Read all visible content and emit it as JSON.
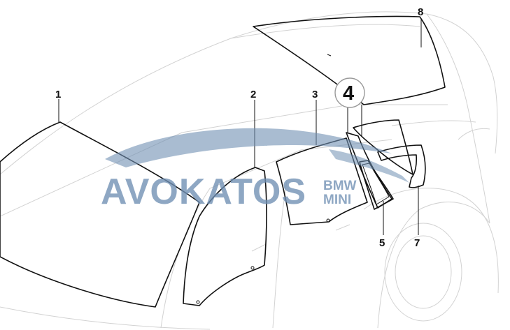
{
  "diagram": {
    "callouts": [
      {
        "id": "1",
        "label": "1"
      },
      {
        "id": "2",
        "label": "2"
      },
      {
        "id": "3",
        "label": "3"
      },
      {
        "id": "4",
        "label": "4",
        "circled": true
      },
      {
        "id": "5",
        "label": "5"
      },
      {
        "id": "6",
        "label": "7"
      },
      {
        "id": "7",
        "label": "8"
      }
    ],
    "watermark": {
      "brand": "AVOKATOS",
      "line1": "BMW",
      "line2": "MINI"
    },
    "colors": {
      "line": "#111111",
      "ghost": "#d2d2d2",
      "watermark": "#6f8fb3"
    }
  }
}
